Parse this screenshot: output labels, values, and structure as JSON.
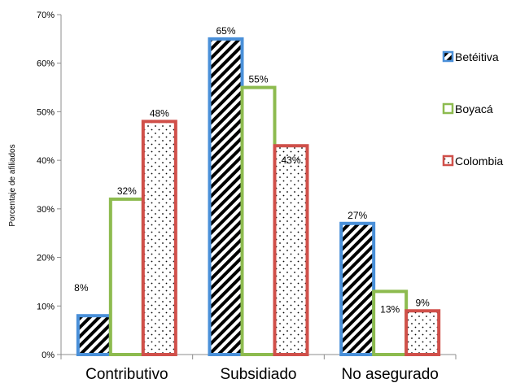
{
  "chart_data": {
    "type": "bar",
    "categories": [
      "Contributivo",
      "Subsidiado",
      "No asegurado"
    ],
    "ylabel": "Porcentaje de afiliados",
    "xlabel": "",
    "ylim": [
      0,
      70
    ],
    "yticks": [
      "0%",
      "10%",
      "20%",
      "30%",
      "40%",
      "50%",
      "60%",
      "70%"
    ],
    "grid": false,
    "legend_position": "right",
    "series": [
      {
        "name": "Betéitiva",
        "values": [
          8,
          65,
          27
        ],
        "labels": [
          "8%",
          "65%",
          "27%"
        ],
        "color": "#4a90d9",
        "pattern": "diagonal-stripes"
      },
      {
        "name": "Boyacá",
        "values": [
          32,
          55,
          13
        ],
        "labels": [
          "32%",
          "55%",
          "13%"
        ],
        "color": "#8dbb4f",
        "pattern": "none"
      },
      {
        "name": "Colombia",
        "values": [
          48,
          43,
          9
        ],
        "labels": [
          "48%",
          "43%",
          "9%"
        ],
        "color": "#d0504a",
        "pattern": "dots"
      }
    ]
  }
}
